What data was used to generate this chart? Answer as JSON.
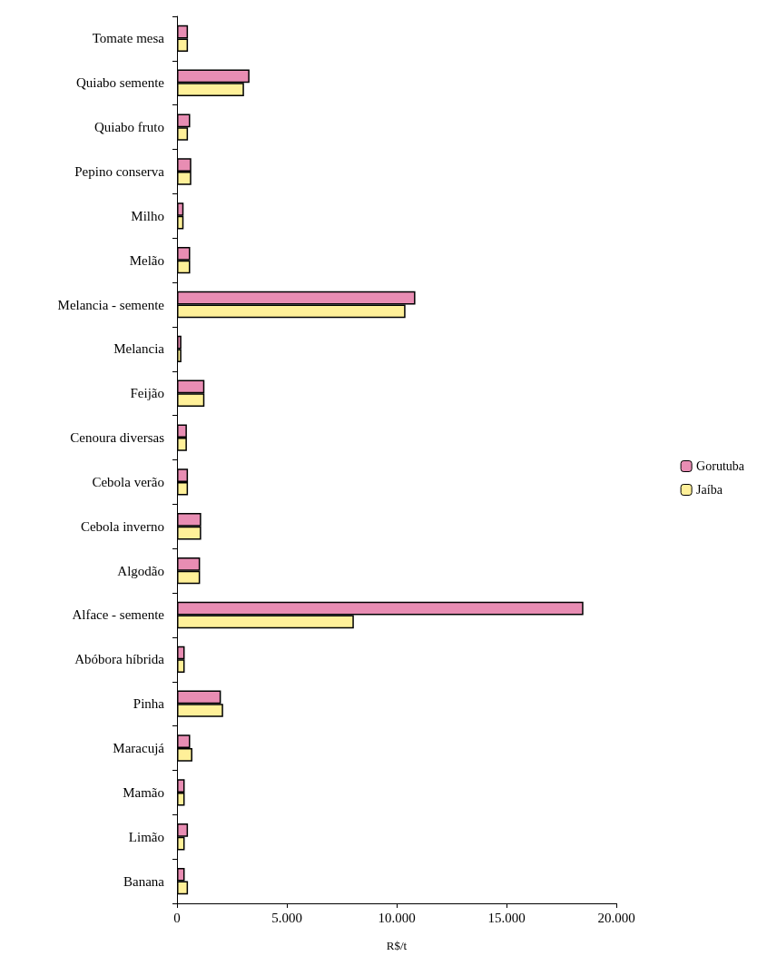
{
  "chart_data": {
    "type": "bar",
    "orientation": "horizontal",
    "xlabel": "R$/t",
    "categories": [
      "Tomate mesa",
      "Quiabo semente",
      "Quiabo fruto",
      "Pepino conserva",
      "Milho",
      "Melão",
      "Melancia - semente",
      "Melancia",
      "Feijão",
      "Cenoura diversas",
      "Cebola verão",
      "Cebola inverno",
      "Algodão",
      "Alface - semente",
      "Abóbora híbrida",
      "Pinha",
      "Maracujá",
      "Mamão",
      "Limão",
      "Banana"
    ],
    "series": [
      {
        "name": "Gorutuba",
        "color": "#e88db3",
        "values": [
          500,
          3300,
          600,
          650,
          300,
          600,
          10850,
          200,
          1250,
          450,
          500,
          1100,
          1050,
          18500,
          350,
          2000,
          600,
          350,
          500,
          350
        ]
      },
      {
        "name": "Jaíba",
        "color": "#fff099",
        "values": [
          500,
          3050,
          500,
          650,
          300,
          600,
          10400,
          200,
          1250,
          450,
          500,
          1100,
          1050,
          8050,
          350,
          2100,
          700,
          350,
          350,
          500
        ]
      }
    ],
    "xlim": [
      0,
      20000
    ],
    "xticks": [
      0,
      {
        "value": 5000,
        "label": "5.000"
      },
      {
        "value": 10000,
        "label": "10.000"
      },
      {
        "value": 15000,
        "label": "15.000"
      },
      {
        "value": 20000,
        "label": "20.000"
      }
    ],
    "grid": false,
    "legend": "right"
  }
}
